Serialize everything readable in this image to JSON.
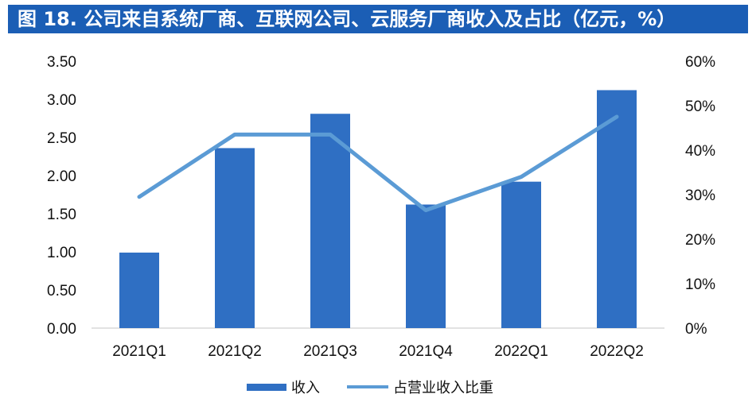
{
  "title": "图 18. 公司来自系统厂商、互联网公司、云服务厂商收入及占比（亿元，%）",
  "colors": {
    "title_bg": "#1b5eb5",
    "bar": "#2f6fc3",
    "line": "#5b9bd5"
  },
  "chart_data": {
    "type": "bar",
    "categories": [
      "2021Q1",
      "2021Q2",
      "2021Q3",
      "2021Q4",
      "2022Q1",
      "2022Q2"
    ],
    "series": [
      {
        "name": "收入",
        "type": "bar",
        "axis": "left",
        "values": [
          0.99,
          2.36,
          2.81,
          1.62,
          1.92,
          3.12
        ]
      },
      {
        "name": "占营业收入比重",
        "type": "line",
        "axis": "right",
        "values": [
          29.5,
          43.5,
          43.5,
          26.5,
          34.0,
          47.5
        ]
      }
    ],
    "y_left": {
      "min": 0,
      "max": 3.5,
      "ticks": [
        "0.00",
        "0.50",
        "1.00",
        "1.50",
        "2.00",
        "2.50",
        "3.00",
        "3.50"
      ]
    },
    "y_right": {
      "min": 0,
      "max": 60,
      "ticks": [
        "0%",
        "10%",
        "20%",
        "30%",
        "40%",
        "50%",
        "60%"
      ]
    },
    "grid": false,
    "legend_position": "bottom"
  }
}
